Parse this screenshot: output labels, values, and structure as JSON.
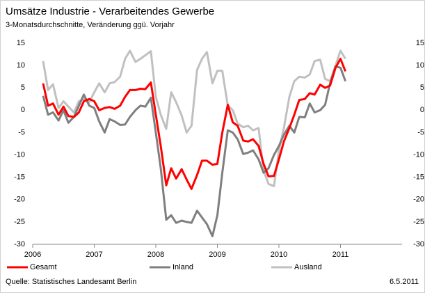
{
  "chart_data": {
    "type": "line",
    "title": "Umsätze Industrie - Verarbeitendes Gewerbe",
    "subtitle": "3-Monatsdurchschnitte, Veränderung ggü. Vorjahr",
    "source": "Quelle: Statistisches Landesamt Berlin",
    "date": "6.5.2011",
    "x": [
      2006.17,
      2006.25,
      2006.33,
      2006.42,
      2006.5,
      2006.58,
      2006.67,
      2006.75,
      2006.83,
      2006.92,
      2007,
      2007.08,
      2007.17,
      2007.25,
      2007.33,
      2007.42,
      2007.5,
      2007.58,
      2007.67,
      2007.75,
      2007.83,
      2007.92,
      2008,
      2008.08,
      2008.17,
      2008.25,
      2008.33,
      2008.42,
      2008.5,
      2008.58,
      2008.67,
      2008.75,
      2008.83,
      2008.92,
      2009,
      2009.08,
      2009.17,
      2009.25,
      2009.33,
      2009.42,
      2009.5,
      2009.58,
      2009.67,
      2009.75,
      2009.83,
      2009.92,
      2010,
      2010.08,
      2010.17,
      2010.25,
      2010.33,
      2010.42,
      2010.5,
      2010.58,
      2010.67,
      2010.75,
      2010.83,
      2010.92,
      2011,
      2011.08
    ],
    "series": [
      {
        "name": "Gesamt",
        "color": "#ff0000",
        "values": [
          6,
          1,
          1.5,
          -1,
          0.8,
          -1.3,
          -1.5,
          -0.5,
          2,
          2.5,
          2,
          0,
          0.5,
          0.7,
          0.3,
          1,
          3,
          4.5,
          4.5,
          4.8,
          4.7,
          6.2,
          -1,
          -8,
          -16.8,
          -13,
          -15.3,
          -13.2,
          -15.5,
          -17.6,
          -14.5,
          -11.3,
          -11.3,
          -12.2,
          -12,
          -5,
          1.2,
          -2.7,
          -3.5,
          -6.8,
          -7,
          -6.5,
          -8,
          -12,
          -14.8,
          -14.7,
          -11,
          -7,
          -4,
          -1,
          2.3,
          2.5,
          3.8,
          3.5,
          5.7,
          5,
          5.5,
          9.5,
          11.5,
          8.7
        ]
      },
      {
        "name": "Inland",
        "color": "#7f7f7f",
        "values": [
          3.2,
          -1,
          -0.5,
          -2.3,
          0,
          -2.8,
          -1.5,
          1,
          3.5,
          1,
          0.5,
          -2.5,
          -5,
          -2,
          -2.5,
          -3.3,
          -3.2,
          -1.5,
          0,
          1,
          0.8,
          2.8,
          -5,
          -13,
          -24.5,
          -23.5,
          -25.2,
          -24.7,
          -25,
          -25.2,
          -22.5,
          -24,
          -25.5,
          -28.2,
          -23.5,
          -14,
          -4.5,
          -5,
          -6.5,
          -9.8,
          -9.5,
          -9,
          -11,
          -14,
          -13,
          -10,
          -8,
          -5.5,
          -3.5,
          -5,
          -1.5,
          -1.6,
          1.5,
          -0.5,
          0,
          1.2,
          6,
          9.8,
          9.5,
          6.5
        ]
      },
      {
        "name": "Ausland",
        "color": "#c0c0c0",
        "values": [
          11,
          4.5,
          5.8,
          0.5,
          2,
          0.8,
          -0.5,
          2,
          2.5,
          1.8,
          4,
          6,
          4,
          6,
          6.3,
          7.5,
          11.5,
          13.3,
          10.8,
          11.5,
          12.3,
          13.2,
          3,
          -1,
          -4.2,
          4,
          1.8,
          -1.2,
          -5,
          -3.5,
          9,
          11.5,
          13,
          6,
          8.8,
          8.8,
          1,
          0,
          -3,
          -3.8,
          -3.5,
          -4.5,
          -4,
          -13.5,
          -16.5,
          -17,
          -9,
          -4,
          3,
          6.5,
          7.5,
          7.3,
          8,
          11,
          11.3,
          7,
          6.5,
          10,
          13.3,
          11.5
        ]
      }
    ],
    "xlim": [
      2006,
      2012
    ],
    "xticks": [
      2006,
      2007,
      2008,
      2009,
      2010,
      2011
    ],
    "ylim": [
      -30,
      15
    ],
    "yticks": [
      -30,
      -25,
      -20,
      -15,
      -10,
      -5,
      0,
      5,
      10,
      15
    ],
    "grid": false
  }
}
